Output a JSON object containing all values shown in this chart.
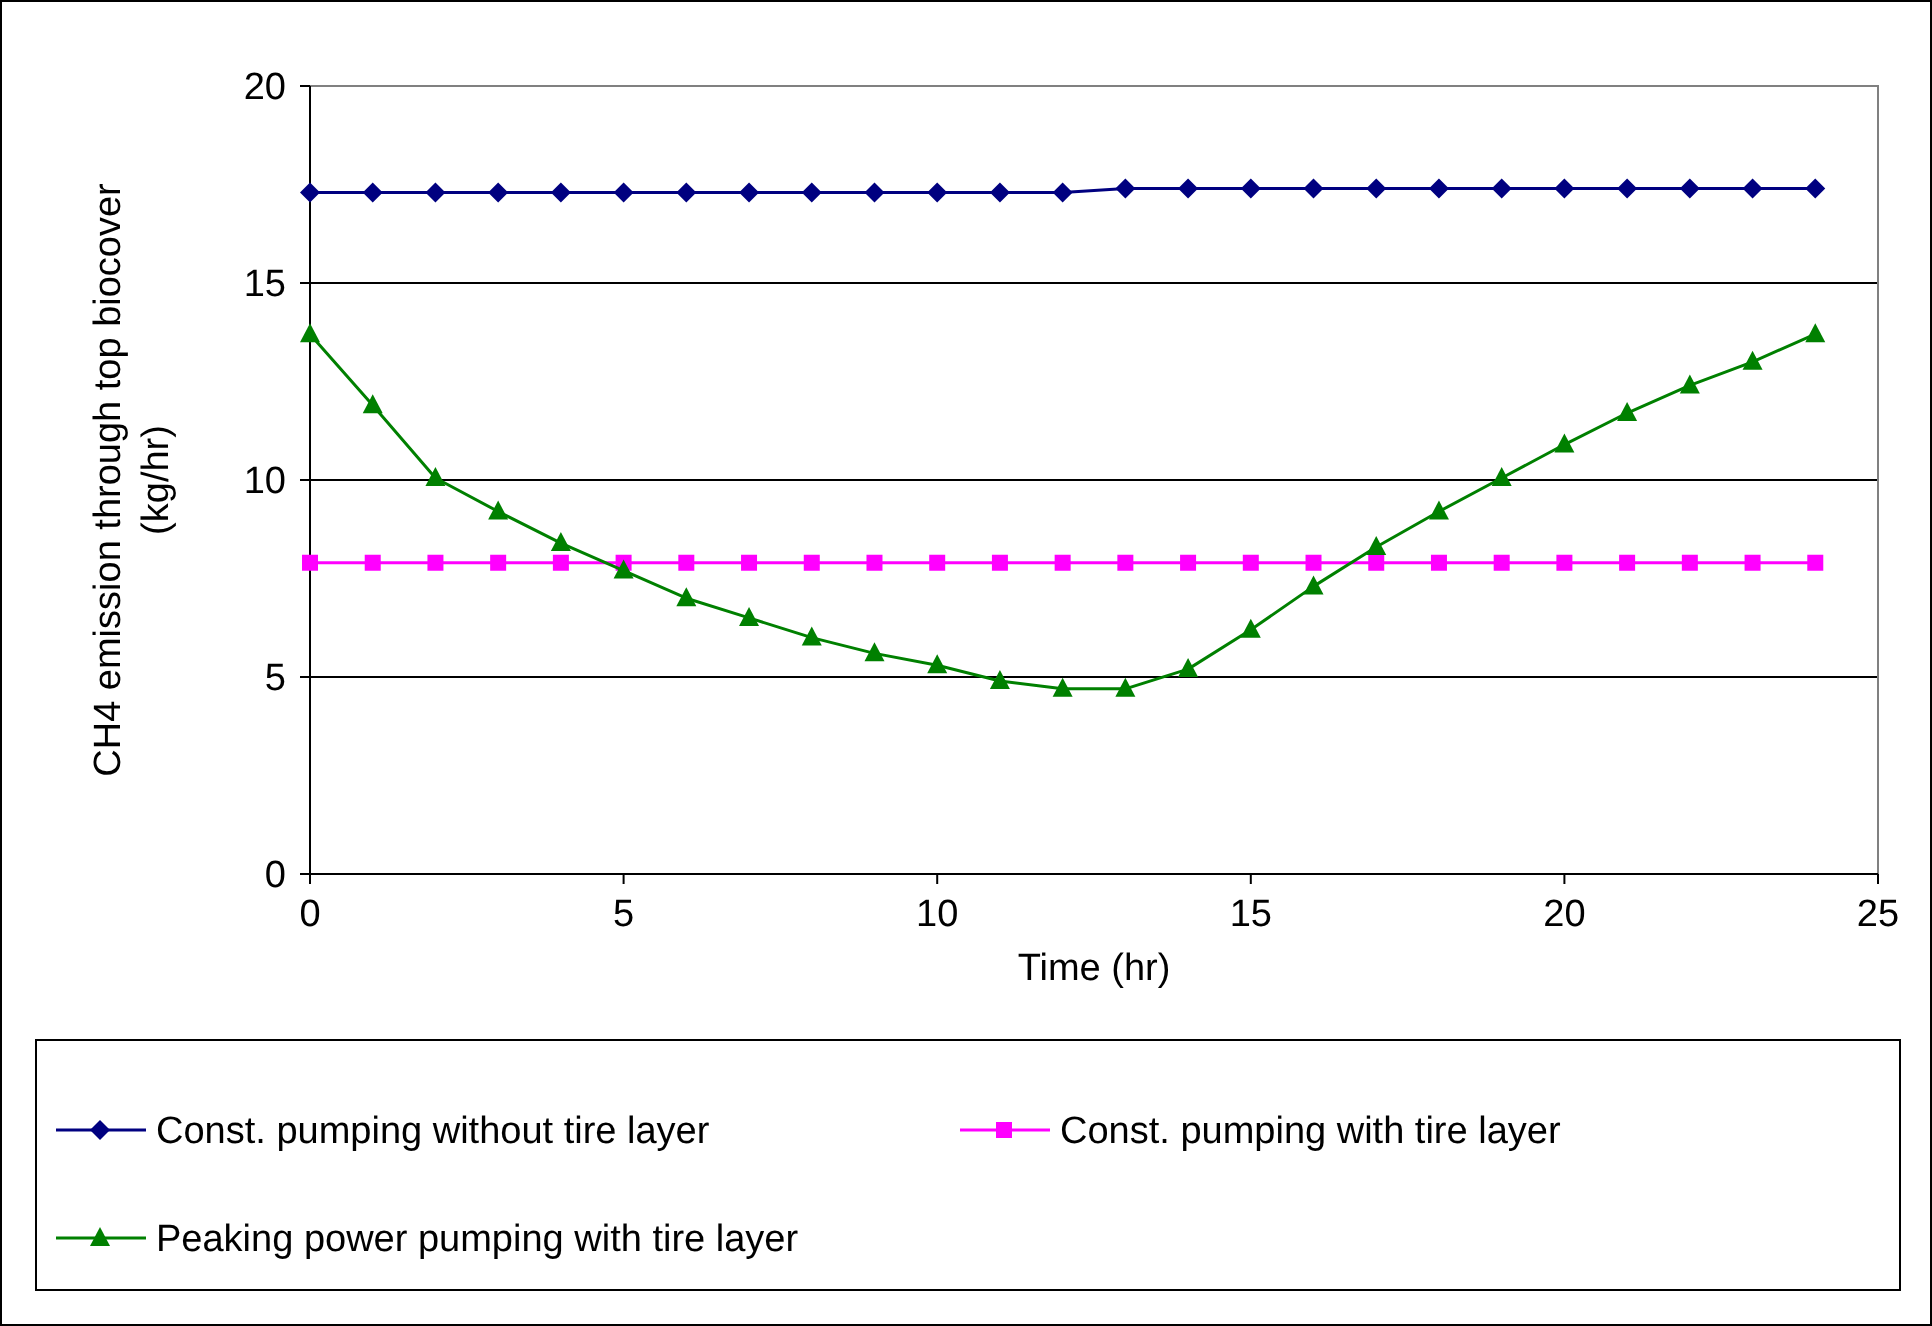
{
  "chart_data": {
    "type": "line",
    "xlabel": "Time (hr)",
    "ylabel": "CH4 emission through top biocover (kg/hr)",
    "x": [
      0,
      1,
      2,
      3,
      4,
      5,
      6,
      7,
      8,
      9,
      10,
      11,
      12,
      13,
      14,
      15,
      16,
      17,
      18,
      19,
      20,
      21,
      22,
      23,
      24
    ],
    "xlim": [
      0,
      25
    ],
    "xticks": [
      0,
      5,
      10,
      15,
      20,
      25
    ],
    "ylim": [
      0,
      20
    ],
    "yticks": [
      0,
      5,
      10,
      15,
      20
    ],
    "grid": "y",
    "legend": "bottom",
    "series": [
      {
        "name": "Const. pumping without tire layer",
        "color": "#000080",
        "marker": "diamond",
        "values": [
          17.3,
          17.3,
          17.3,
          17.3,
          17.3,
          17.3,
          17.3,
          17.3,
          17.3,
          17.3,
          17.3,
          17.3,
          17.3,
          17.4,
          17.4,
          17.4,
          17.4,
          17.4,
          17.4,
          17.4,
          17.4,
          17.4,
          17.4,
          17.4,
          17.4
        ]
      },
      {
        "name": "Const. pumping with tire layer",
        "color": "#ff00ff",
        "marker": "square",
        "values": [
          7.9,
          7.9,
          7.9,
          7.9,
          7.9,
          7.9,
          7.9,
          7.9,
          7.9,
          7.9,
          7.9,
          7.9,
          7.9,
          7.9,
          7.9,
          7.9,
          7.9,
          7.9,
          7.9,
          7.9,
          7.9,
          7.9,
          7.9,
          7.9,
          7.9
        ]
      },
      {
        "name": "Peaking power pumping with tire layer",
        "color": "#008000",
        "marker": "triangle",
        "values": [
          13.7,
          11.9,
          10.05,
          9.2,
          8.4,
          7.7,
          7.0,
          6.5,
          6.0,
          5.6,
          5.3,
          4.9,
          4.7,
          4.7,
          5.2,
          6.2,
          7.3,
          8.3,
          9.2,
          10.05,
          10.9,
          11.7,
          12.4,
          13.0,
          13.7
        ]
      }
    ]
  }
}
